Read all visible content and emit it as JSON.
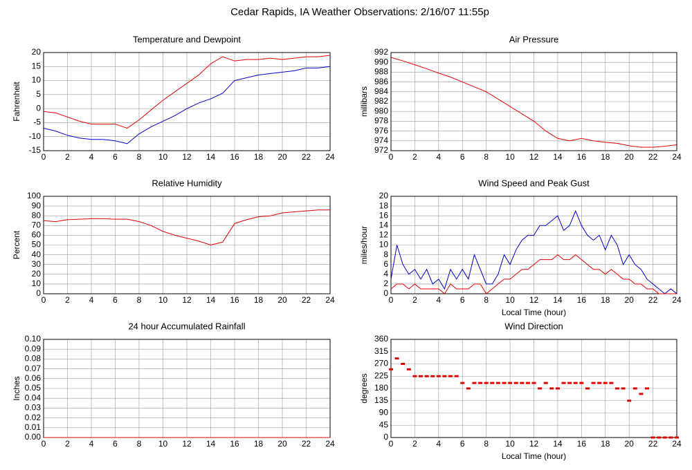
{
  "title": "Cedar Rapids, IA Weather Observations: 2/16/07 11:55p",
  "chart_data": [
    {
      "type": "line",
      "title": "Temperature and Dewpoint",
      "ylabel": "Fahrenheit",
      "x": [
        0,
        1,
        2,
        3,
        4,
        5,
        6,
        7,
        8,
        9,
        10,
        11,
        12,
        13,
        14,
        15,
        16,
        17,
        18,
        19,
        20,
        21,
        22,
        23,
        24
      ],
      "series": [
        {
          "color": "#e00000",
          "values": [
            -1,
            -1.5,
            -3,
            -4.5,
            -5.5,
            -5.5,
            -5.5,
            -7,
            -4,
            -0.5,
            3,
            6,
            9,
            12,
            16,
            18.5,
            17,
            17.5,
            17.5,
            18,
            17.5,
            18,
            18.5,
            18.5,
            19
          ]
        },
        {
          "color": "#0000c8",
          "values": [
            -7,
            -8,
            -9.5,
            -10.5,
            -11,
            -11,
            -11.5,
            -12.5,
            -9,
            -6.5,
            -4.5,
            -2.5,
            0,
            2,
            3.5,
            5.5,
            10,
            11,
            12,
            12.5,
            13,
            13.5,
            14.5,
            14.5,
            15
          ]
        }
      ],
      "xlim": [
        0,
        24
      ],
      "xticks": [
        0,
        2,
        4,
        6,
        8,
        10,
        12,
        14,
        16,
        18,
        20,
        22,
        24
      ],
      "ylim": [
        -15,
        20
      ],
      "yticks": [
        -15,
        -10,
        -5,
        0,
        5,
        10,
        15,
        20
      ],
      "grid": true
    },
    {
      "type": "line",
      "title": "Air Pressure",
      "ylabel": "millibars",
      "x": [
        0,
        1,
        2,
        3,
        4,
        5,
        6,
        7,
        8,
        9,
        10,
        11,
        12,
        13,
        14,
        15,
        16,
        17,
        18,
        19,
        20,
        21,
        22,
        23,
        24
      ],
      "series": [
        {
          "color": "#e00000",
          "values": [
            991,
            990.3,
            989.5,
            988.7,
            987.8,
            987,
            986,
            985,
            984,
            982.5,
            981,
            979.5,
            978,
            976,
            974.5,
            974,
            974.5,
            974,
            973.7,
            973.5,
            973,
            972.7,
            972.7,
            972.9,
            973.2
          ]
        }
      ],
      "xlim": [
        0,
        24
      ],
      "xticks": [
        0,
        2,
        4,
        6,
        8,
        10,
        12,
        14,
        16,
        18,
        20,
        22,
        24
      ],
      "ylim": [
        972,
        992
      ],
      "yticks": [
        972,
        974,
        976,
        978,
        980,
        982,
        984,
        986,
        988,
        990,
        992
      ],
      "grid": true
    },
    {
      "type": "line",
      "title": "Relative Humidity",
      "ylabel": "Percent",
      "x": [
        0,
        1,
        2,
        3,
        4,
        5,
        6,
        7,
        8,
        9,
        10,
        11,
        12,
        13,
        14,
        15,
        16,
        17,
        18,
        19,
        20,
        21,
        22,
        23,
        24
      ],
      "series": [
        {
          "color": "#e00000",
          "values": [
            75,
            74,
            76,
            76.5,
            77,
            77,
            76.5,
            76.5,
            74,
            70,
            64,
            60,
            57,
            54,
            50,
            53,
            72,
            76,
            79,
            80,
            83,
            84,
            85,
            86,
            86
          ]
        }
      ],
      "xlim": [
        0,
        24
      ],
      "xticks": [
        0,
        2,
        4,
        6,
        8,
        10,
        12,
        14,
        16,
        18,
        20,
        22,
        24
      ],
      "ylim": [
        0,
        100
      ],
      "yticks": [
        0,
        10,
        20,
        30,
        40,
        50,
        60,
        70,
        80,
        90,
        100
      ],
      "grid": true
    },
    {
      "type": "line",
      "title": "Wind Speed and Peak Gust",
      "ylabel": "miles/hour",
      "xlabel": "Local Time (hour)",
      "x": [
        0,
        0.5,
        1,
        1.5,
        2,
        2.5,
        3,
        3.5,
        4,
        4.5,
        5,
        5.5,
        6,
        6.5,
        7,
        7.5,
        8,
        8.5,
        9,
        9.5,
        10,
        10.5,
        11,
        11.5,
        12,
        12.5,
        13,
        13.5,
        14,
        14.5,
        15,
        15.5,
        16,
        16.5,
        17,
        17.5,
        18,
        18.5,
        19,
        19.5,
        20,
        20.5,
        21,
        21.5,
        22,
        22.5,
        23,
        23.5,
        24
      ],
      "series": [
        {
          "color": "#0000c8",
          "values": [
            3,
            10,
            6,
            4,
            5,
            3,
            5,
            2,
            3,
            1,
            5,
            3,
            5,
            3,
            8,
            5,
            2,
            2,
            4,
            8,
            6,
            9,
            11,
            12,
            12,
            14,
            14,
            15,
            16,
            13,
            14,
            17,
            14,
            12,
            11,
            12,
            9,
            12,
            10,
            6,
            8,
            6,
            5,
            3,
            2,
            1,
            0,
            1,
            0
          ]
        },
        {
          "color": "#e00000",
          "values": [
            1,
            2,
            2,
            1,
            2,
            1,
            1,
            1,
            1,
            0,
            2,
            1,
            1,
            1,
            2,
            2,
            0,
            1,
            2,
            3,
            3,
            4,
            5,
            5,
            6,
            7,
            7,
            7,
            8,
            7,
            7,
            8,
            7,
            6,
            5,
            5,
            4,
            5,
            4,
            3,
            3,
            2,
            2,
            1,
            1,
            0,
            0,
            0,
            0
          ]
        }
      ],
      "xlim": [
        0,
        24
      ],
      "xticks": [
        0,
        2,
        4,
        6,
        8,
        10,
        12,
        14,
        16,
        18,
        20,
        22,
        24
      ],
      "ylim": [
        0,
        20
      ],
      "yticks": [
        0,
        2,
        4,
        6,
        8,
        10,
        12,
        14,
        16,
        18,
        20
      ],
      "grid": true
    },
    {
      "type": "line",
      "title": "24 hour Accumulated Rainfall",
      "ylabel": "Inches",
      "x": [
        0,
        24
      ],
      "series": [
        {
          "color": "#e00000",
          "values": [
            0,
            0
          ]
        }
      ],
      "xlim": [
        0,
        24
      ],
      "xticks": [
        0,
        2,
        4,
        6,
        8,
        10,
        12,
        14,
        16,
        18,
        20,
        22,
        24
      ],
      "ylim": [
        0,
        0.1
      ],
      "yticks": [
        {
          "value": 0,
          "label": "0.00"
        },
        {
          "value": 0.01,
          "label": "0.01"
        },
        {
          "value": 0.02,
          "label": "0.02"
        },
        {
          "value": 0.03,
          "label": "0.03"
        },
        {
          "value": 0.04,
          "label": "0.04"
        },
        {
          "value": 0.05,
          "label": "0.05"
        },
        {
          "value": 0.06,
          "label": "0.06"
        },
        {
          "value": 0.07,
          "label": "0.07"
        },
        {
          "value": 0.08,
          "label": "0.08"
        },
        {
          "value": 0.09,
          "label": "0.09"
        },
        {
          "value": 0.1,
          "label": "0.10"
        }
      ],
      "grid": true
    },
    {
      "type": "scatter",
      "title": "Wind Direction",
      "ylabel": "degrees",
      "xlabel": "Local Time (hour)",
      "x": [
        0,
        0.5,
        1,
        1.5,
        2,
        2.5,
        3,
        3.5,
        4,
        4.5,
        5,
        5.5,
        6,
        6.5,
        7,
        7.5,
        8,
        8.5,
        9,
        9.5,
        10,
        10.5,
        11,
        11.5,
        12,
        12.5,
        13,
        13.5,
        14,
        14.5,
        15,
        15.5,
        16,
        16.5,
        17,
        17.5,
        18,
        18.5,
        19,
        19.5,
        20,
        20.5,
        21,
        21.5,
        22,
        22.5,
        23,
        23.5,
        24
      ],
      "series": [
        {
          "color": "#e00000",
          "values": [
            250,
            290,
            270,
            250,
            225,
            225,
            225,
            225,
            225,
            225,
            225,
            225,
            200,
            180,
            200,
            200,
            200,
            200,
            200,
            200,
            200,
            200,
            200,
            200,
            200,
            180,
            200,
            180,
            180,
            200,
            200,
            200,
            200,
            180,
            200,
            200,
            200,
            200,
            180,
            180,
            135,
            180,
            160,
            180,
            0,
            0,
            0,
            0,
            0
          ]
        }
      ],
      "xlim": [
        0,
        24
      ],
      "xticks": [
        0,
        2,
        4,
        6,
        8,
        10,
        12,
        14,
        16,
        18,
        20,
        22,
        24
      ],
      "ylim": [
        0,
        360
      ],
      "yticks": [
        0,
        45,
        90,
        135,
        180,
        225,
        270,
        315,
        360
      ],
      "grid": true
    }
  ]
}
